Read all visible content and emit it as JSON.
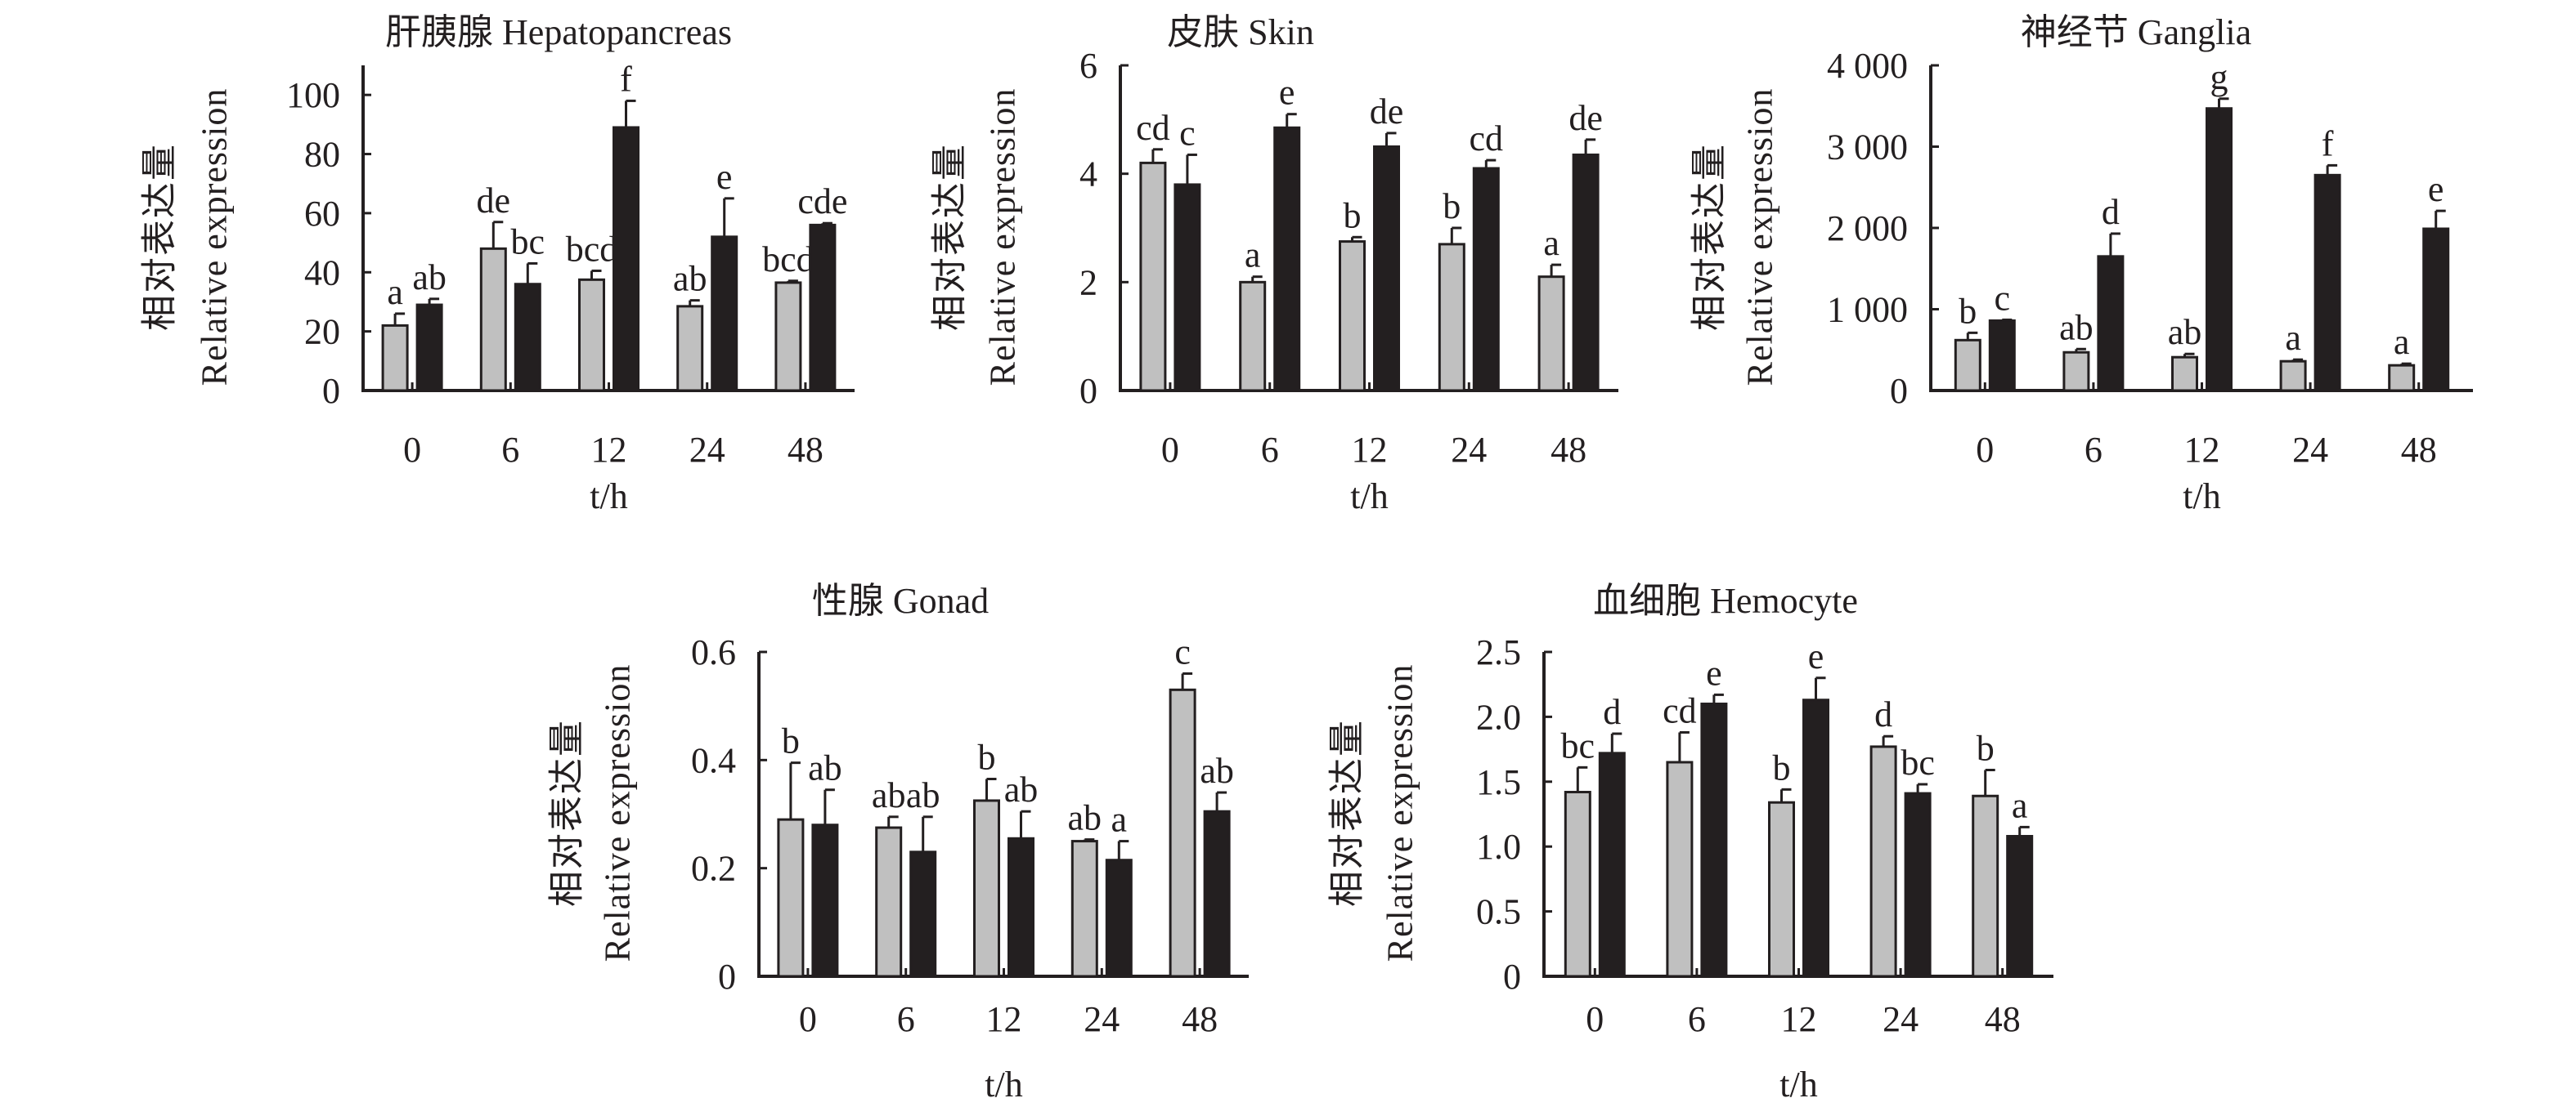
{
  "chart_data": [
    {
      "type": "bar",
      "title": "肝胰腺 Hepatopancreas",
      "ylabel": [
        "相对表达量",
        "Relative expression"
      ],
      "xlabel": "t/h",
      "categories": [
        "0",
        "6",
        "12",
        "24",
        "48"
      ],
      "ylim": [
        0,
        110
      ],
      "yticks": [
        {
          "v": 0,
          "t": "0"
        },
        {
          "v": 20,
          "t": "20"
        },
        {
          "v": 40,
          "t": "40"
        },
        {
          "v": 60,
          "t": "60"
        },
        {
          "v": 80,
          "t": "80"
        },
        {
          "v": 100,
          "t": "100"
        }
      ],
      "series": [
        {
          "color": "#c0c0c0",
          "values": [
            22,
            48,
            37.5,
            28.5,
            36.5
          ],
          "errors": [
            4,
            9,
            3,
            2,
            0.6
          ],
          "letters": [
            "a",
            "de",
            "bcd",
            "ab",
            "bcd"
          ]
        },
        {
          "color": "#231f20",
          "values": [
            29,
            36,
            89,
            52,
            56
          ],
          "errors": [
            2,
            7,
            9,
            13,
            0.6
          ],
          "letters": [
            "ab",
            "bc",
            "f",
            "e",
            "cde"
          ]
        }
      ]
    },
    {
      "type": "bar",
      "title": "皮肤 Skin",
      "ylabel": [
        "相对表达量",
        "Relative expression"
      ],
      "xlabel": "t/h",
      "categories": [
        "0",
        "6",
        "12",
        "24",
        "48"
      ],
      "ylim": [
        0,
        6
      ],
      "yticks": [
        {
          "v": 0,
          "t": "0"
        },
        {
          "v": 2,
          "t": "2"
        },
        {
          "v": 4,
          "t": "4"
        },
        {
          "v": 6,
          "t": "6"
        }
      ],
      "series": [
        {
          "color": "#c0c0c0",
          "values": [
            4.2,
            2.0,
            2.75,
            2.7,
            2.1
          ],
          "errors": [
            0.25,
            0.1,
            0.08,
            0.3,
            0.22
          ],
          "letters": [
            "cd",
            "a",
            "b",
            "b",
            "a"
          ]
        },
        {
          "color": "#231f20",
          "values": [
            3.8,
            4.85,
            4.5,
            4.1,
            4.35
          ],
          "errors": [
            0.55,
            0.25,
            0.25,
            0.15,
            0.28
          ],
          "letters": [
            "c",
            "e",
            "de",
            "cd",
            "de"
          ]
        }
      ]
    },
    {
      "type": "bar",
      "title": "神经节 Ganglia",
      "ylabel": [
        "相对表达量",
        "Relative expression"
      ],
      "xlabel": "t/h",
      "categories": [
        "0",
        "6",
        "12",
        "24",
        "48"
      ],
      "ylim": [
        0,
        4000
      ],
      "yticks": [
        {
          "v": 0,
          "t": "0"
        },
        {
          "v": 1000,
          "t": "1 000"
        },
        {
          "v": 2000,
          "t": "2 000"
        },
        {
          "v": 3000,
          "t": "3 000"
        },
        {
          "v": 4000,
          "t": "4 000"
        }
      ],
      "series": [
        {
          "color": "#c0c0c0",
          "values": [
            620,
            470,
            410,
            360,
            310
          ],
          "errors": [
            90,
            40,
            40,
            20,
            20
          ],
          "letters": [
            "b",
            "ab",
            "ab",
            "a",
            "a"
          ]
        },
        {
          "color": "#231f20",
          "values": [
            860,
            1650,
            3470,
            2650,
            1990
          ],
          "errors": [
            10,
            280,
            120,
            120,
            220
          ],
          "letters": [
            "c",
            "d",
            "g",
            "f",
            "e"
          ]
        }
      ]
    },
    {
      "type": "bar",
      "title": "性腺 Gonad",
      "ylabel": [
        "相对表达量",
        "Relative expression"
      ],
      "xlabel": "t/h",
      "categories": [
        "0",
        "6",
        "12",
        "24",
        "48"
      ],
      "ylim": [
        0,
        0.6
      ],
      "yticks": [
        {
          "v": 0,
          "t": "0"
        },
        {
          "v": 0.2,
          "t": "0.2"
        },
        {
          "v": 0.4,
          "t": "0.4"
        },
        {
          "v": 0.6,
          "t": "0.6"
        }
      ],
      "series": [
        {
          "color": "#c0c0c0",
          "values": [
            0.29,
            0.275,
            0.325,
            0.25,
            0.53
          ],
          "errors": [
            0.105,
            0.02,
            0.04,
            0.003,
            0.03
          ],
          "letters": [
            "b",
            "ab",
            "b",
            "ab",
            "c"
          ]
        },
        {
          "color": "#231f20",
          "values": [
            0.28,
            0.23,
            0.255,
            0.215,
            0.305
          ],
          "errors": [
            0.065,
            0.065,
            0.05,
            0.035,
            0.035
          ],
          "letters": [
            "ab",
            "ab",
            "ab",
            "a",
            "ab"
          ]
        }
      ]
    },
    {
      "type": "bar",
      "title": "血细胞 Hemocyte",
      "ylabel": [
        "相对表达量",
        "Relative expression"
      ],
      "xlabel": "t/h",
      "categories": [
        "0",
        "6",
        "12",
        "24",
        "48"
      ],
      "ylim": [
        0,
        2.5
      ],
      "yticks": [
        {
          "v": 0,
          "t": "0"
        },
        {
          "v": 0.5,
          "t": "0.5"
        },
        {
          "v": 1.0,
          "t": "1.0"
        },
        {
          "v": 1.5,
          "t": "1.5"
        },
        {
          "v": 2.0,
          "t": "2.0"
        },
        {
          "v": 2.5,
          "t": "2.5"
        }
      ],
      "series": [
        {
          "color": "#c0c0c0",
          "values": [
            1.42,
            1.65,
            1.34,
            1.77,
            1.39
          ],
          "errors": [
            0.19,
            0.23,
            0.1,
            0.08,
            0.2
          ],
          "letters": [
            "bc",
            "cd",
            "b",
            "d",
            "b"
          ]
        },
        {
          "color": "#231f20",
          "values": [
            1.72,
            2.1,
            2.13,
            1.41,
            1.08
          ],
          "errors": [
            0.15,
            0.07,
            0.17,
            0.07,
            0.07
          ],
          "letters": [
            "d",
            "e",
            "e",
            "bc",
            "a"
          ]
        }
      ]
    }
  ]
}
